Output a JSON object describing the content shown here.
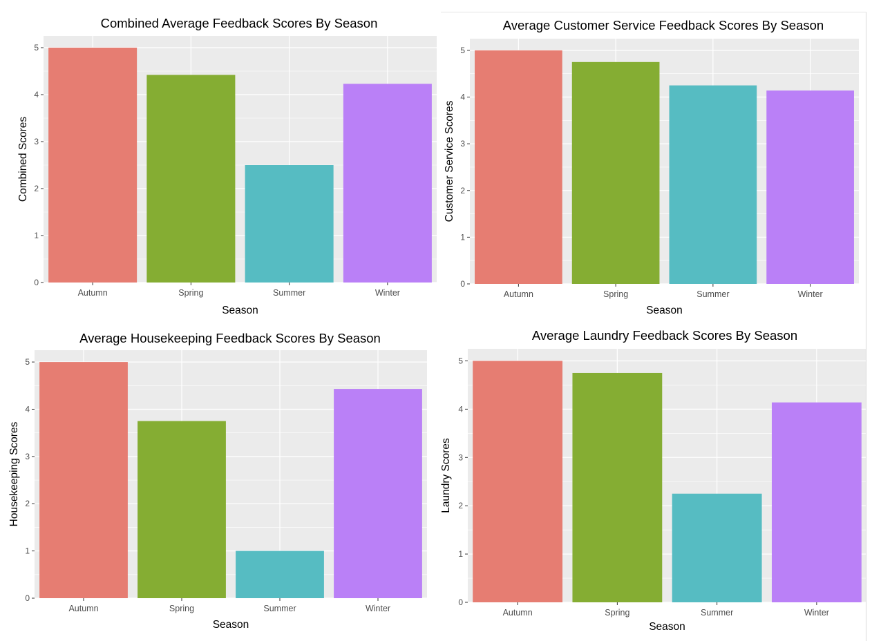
{
  "colors": {
    "panel_bg": "#EBEBEB",
    "grid": "#FFFFFF",
    "tick": "#4D4D4D",
    "text": "#000000",
    "Autumn": "#E67D72",
    "Spring": "#85AD33",
    "Summer": "#56BCC2",
    "Winter": "#BA80F7"
  },
  "chart_data": [
    {
      "id": "combined",
      "type": "bar",
      "title": "Combined Average Feedback Scores By Season",
      "xlabel": "Season",
      "ylabel": "Combined Scores",
      "categories": [
        "Autumn",
        "Spring",
        "Summer",
        "Winter"
      ],
      "values": [
        5.0,
        4.42,
        2.5,
        4.23
      ],
      "ylim": [
        0,
        5.25
      ],
      "yticks": [
        0,
        1,
        2,
        3,
        4,
        5
      ],
      "grid": true,
      "legend": "none"
    },
    {
      "id": "customer-service",
      "type": "bar",
      "title": "Average Customer Service Feedback Scores By Season",
      "xlabel": "Season",
      "ylabel": "Customer Service Scores",
      "categories": [
        "Autumn",
        "Spring",
        "Summer",
        "Winter"
      ],
      "values": [
        5.0,
        4.75,
        4.25,
        4.14
      ],
      "ylim": [
        0,
        5.25
      ],
      "yticks": [
        0,
        1,
        2,
        3,
        4,
        5
      ],
      "grid": true,
      "legend": "none"
    },
    {
      "id": "housekeeping",
      "type": "bar",
      "title": "Average Housekeeping Feedback Scores By Season",
      "xlabel": "Season",
      "ylabel": "Housekeeping Scores",
      "categories": [
        "Autumn",
        "Spring",
        "Summer",
        "Winter"
      ],
      "values": [
        5.0,
        3.75,
        1.0,
        4.43
      ],
      "ylim": [
        0,
        5.25
      ],
      "yticks": [
        0,
        1,
        2,
        3,
        4,
        5
      ],
      "grid": true,
      "legend": "none"
    },
    {
      "id": "laundry",
      "type": "bar",
      "title": "Average Laundry Feedback Scores By Season",
      "xlabel": "Season",
      "ylabel": "Laundry Scores",
      "categories": [
        "Autumn",
        "Spring",
        "Summer",
        "Winter"
      ],
      "values": [
        5.0,
        4.75,
        2.25,
        4.14
      ],
      "ylim": [
        0,
        5.25
      ],
      "yticks": [
        0,
        1,
        2,
        3,
        4,
        5
      ],
      "grid": true,
      "legend": "none"
    }
  ]
}
